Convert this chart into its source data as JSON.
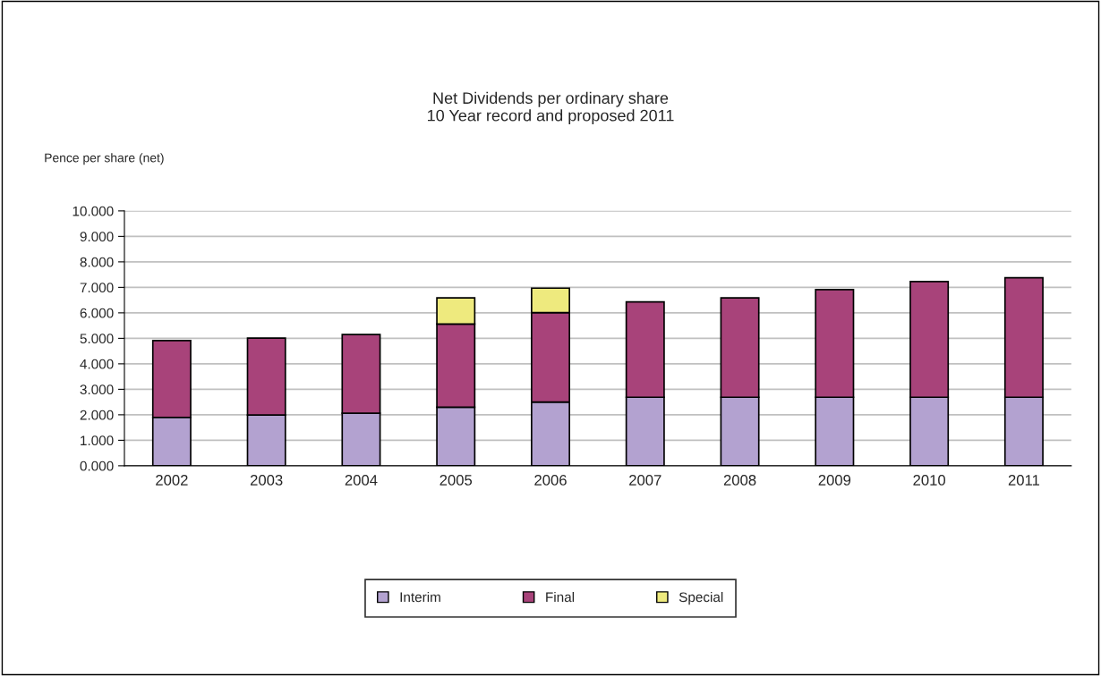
{
  "chart_data": {
    "type": "bar",
    "title": "Net Dividends per ordinary share\n10 Year record and proposed 2011",
    "ylabel": "Pence per share (net)",
    "categories": [
      "2002",
      "2003",
      "2004",
      "2005",
      "2006",
      "2007",
      "2008",
      "2009",
      "2010",
      "2011"
    ],
    "stacked": true,
    "series": [
      {
        "name": "Interim",
        "color": "#b3a2d0",
        "values": [
          1.9,
          1.99,
          2.06,
          2.3,
          2.5,
          2.69,
          2.69,
          2.69,
          2.69,
          2.69
        ]
      },
      {
        "name": "Final",
        "color": "#a8437a",
        "values": [
          3.01,
          3.02,
          3.09,
          3.26,
          3.51,
          3.74,
          3.9,
          4.22,
          4.54,
          4.69
        ]
      },
      {
        "name": "Special",
        "color": "#eeea7e",
        "values": [
          null,
          null,
          null,
          1.03,
          0.96,
          null,
          null,
          null,
          null,
          null
        ]
      }
    ],
    "ylim": [
      0,
      10
    ],
    "yticks": [
      {
        "value": 0,
        "label": "0.000"
      },
      {
        "value": 1,
        "label": "1.000"
      },
      {
        "value": 2,
        "label": "2.000"
      },
      {
        "value": 3,
        "label": "3.000"
      },
      {
        "value": 4,
        "label": "4.000"
      },
      {
        "value": 5,
        "label": "5.000"
      },
      {
        "value": 6,
        "label": "6.000"
      },
      {
        "value": 7,
        "label": "7.000"
      },
      {
        "value": 8,
        "label": "8.000"
      },
      {
        "value": 9,
        "label": "9.000"
      },
      {
        "value": 10,
        "label": "10.000"
      }
    ],
    "grid": "y",
    "legend": "bottom"
  }
}
